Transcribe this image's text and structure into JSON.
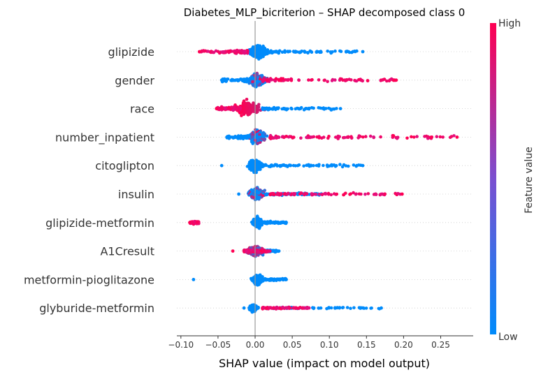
{
  "chart_data": {
    "type": "scatter",
    "subtype": "shap-beeswarm",
    "title": "Diabetes_MLP_bicriterion – SHAP decomposed class 0",
    "xlabel": "SHAP value (impact on model output)",
    "xlim": [
      -0.105,
      0.29
    ],
    "xticks": [
      -0.1,
      -0.05,
      0.0,
      0.05,
      0.1,
      0.15,
      0.2,
      0.25
    ],
    "xtick_labels": [
      "−0.10",
      "−0.05",
      "0.00",
      "0.05",
      "0.10",
      "0.15",
      "0.20",
      "0.25"
    ],
    "colorbar": {
      "label": "Feature value",
      "high_label": "High",
      "low_label": "Low",
      "high_color": "#ff0052",
      "low_color": "#008bfb"
    },
    "features": [
      {
        "name": "glipizide",
        "min": -0.075,
        "max": 0.145,
        "core": [
          -0.01,
          0.02
        ],
        "low_tail": [
          0.03,
          0.14
        ],
        "high_tail": [
          -0.075,
          -0.01
        ],
        "spread": 1.0
      },
      {
        "name": "gender",
        "min": -0.045,
        "max": 0.19,
        "core": [
          -0.01,
          0.015
        ],
        "low_tail": [
          -0.045,
          -0.01
        ],
        "high_tail": [
          0.01,
          0.19
        ],
        "spread": 1.0
      },
      {
        "name": "race",
        "min": -0.052,
        "max": 0.115,
        "core": [
          -0.03,
          0.01
        ],
        "low_tail": [
          0.02,
          0.11
        ],
        "high_tail": [
          -0.052,
          -0.02
        ],
        "spread": 1.0
      },
      {
        "name": "number_inpatient",
        "min": -0.038,
        "max": 0.272,
        "core": [
          -0.01,
          0.015
        ],
        "low_tail": [
          -0.038,
          -0.005
        ],
        "high_tail": [
          0.02,
          0.272
        ],
        "spread": 1.0
      },
      {
        "name": "citoglipton",
        "min": -0.045,
        "max": 0.145,
        "core": [
          -0.01,
          0.01
        ],
        "low_tail": [
          -0.045,
          0.145
        ],
        "high_tail": [],
        "spread": 0.9
      },
      {
        "name": "insulin",
        "min": -0.022,
        "max": 0.198,
        "core": [
          -0.01,
          0.015
        ],
        "low_tail": [
          -0.02,
          0.09
        ],
        "high_tail": [
          0.02,
          0.198
        ],
        "spread": 0.8
      },
      {
        "name": "glipizide-metformin",
        "min": -0.088,
        "max": 0.042,
        "core": [
          -0.005,
          0.012
        ],
        "low_tail": [
          -0.035,
          0.042
        ],
        "high_tail": [
          -0.088,
          -0.076
        ],
        "spread": 0.8
      },
      {
        "name": "A1Cresult",
        "min": -0.03,
        "max": 0.032,
        "core": [
          -0.015,
          0.015
        ],
        "low_tail": [
          -0.02,
          0.032
        ],
        "high_tail": [
          -0.03,
          0.02
        ],
        "spread": 0.7
      },
      {
        "name": "metformin-pioglitazone",
        "min": -0.083,
        "max": 0.042,
        "core": [
          -0.005,
          0.012
        ],
        "low_tail": [
          -0.035,
          0.042
        ],
        "high_tail": [],
        "spread": 0.8
      },
      {
        "name": "glyburide-metformin",
        "min": -0.015,
        "max": 0.17,
        "core": [
          -0.008,
          0.003
        ],
        "low_tail": [
          -0.015,
          0.17
        ],
        "high_tail": [
          0.01,
          0.073
        ],
        "spread": 0.55
      }
    ]
  }
}
